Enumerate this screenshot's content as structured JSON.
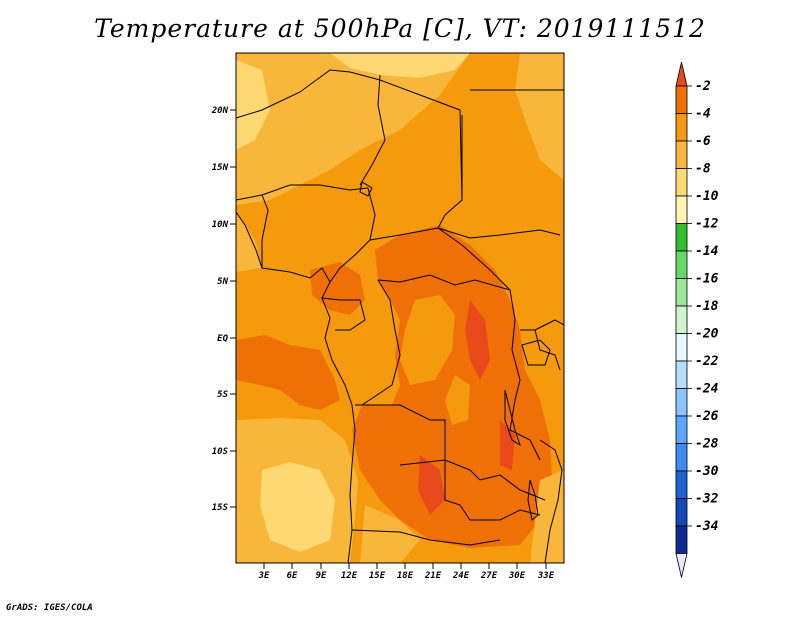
{
  "title": "Temperature at 500hPa [C], VT: 2019111512",
  "credit": "GrADS: IGES/COLA",
  "map": {
    "lat_labels": [
      "20N",
      "15N",
      "10N",
      "5N",
      "EQ",
      "5S",
      "10S",
      "15S"
    ],
    "lon_labels": [
      "3E",
      "6E",
      "9E",
      "12E",
      "15E",
      "18E",
      "21E",
      "24E",
      "27E",
      "30E",
      "33E"
    ]
  },
  "colorbar": {
    "labels": [
      "-2",
      "-4",
      "-6",
      "-8",
      "-10",
      "-12",
      "-14",
      "-16",
      "-18",
      "-20",
      "-22",
      "-24",
      "-26",
      "-28",
      "-30",
      "-32",
      "-34"
    ],
    "colors": [
      "#e84a1c",
      "#f07008",
      "#f59a0c",
      "#f8b63a",
      "#fdd873",
      "#fff3b0",
      "#30bf30",
      "#66d866",
      "#9be89b",
      "#d0f4cc",
      "#e6f7ff",
      "#b4deff",
      "#8cc4ff",
      "#5ca6ff",
      "#3c8cf0",
      "#1f64d4",
      "#1448b8",
      "#0c2c90",
      "#e8e8ff"
    ]
  }
}
